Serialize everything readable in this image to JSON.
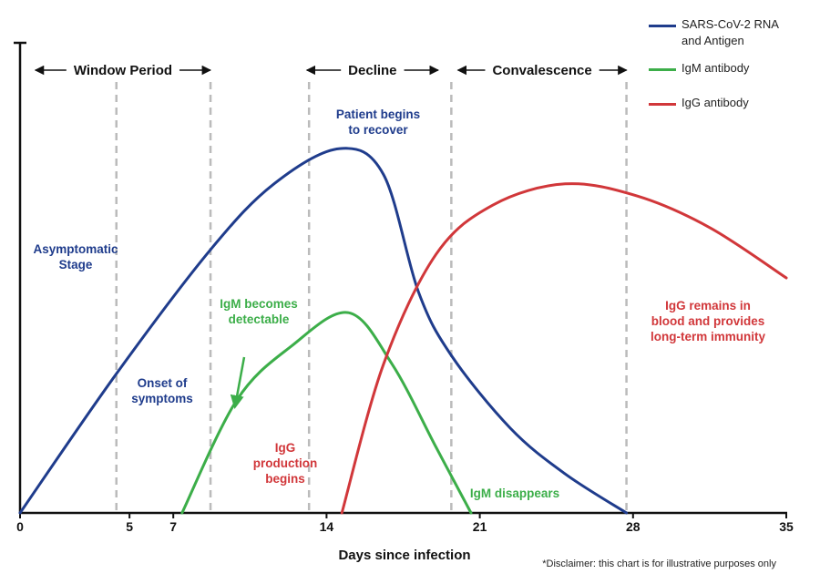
{
  "chart_data": {
    "type": "line",
    "x_label": "Days since infection",
    "footnote": "*Disclaimer: this chart is for illustrative purposes only",
    "xlim": [
      0,
      35
    ],
    "xticks": [
      0,
      5,
      7,
      14,
      21,
      28,
      35
    ],
    "ylim": [
      0,
      100
    ],
    "series": [
      {
        "name": "SARS-CoV-2 RNA and Antigen",
        "color": "#1f3c8c",
        "x": [
          0,
          4.4,
          8.7,
          11.6,
          14.6,
          16.6,
          18.2,
          19.7,
          22.4,
          24.9,
          27.7
        ],
        "values": [
          0,
          29.6,
          56,
          70,
          77.5,
          72,
          47,
          33.5,
          18,
          8.3,
          0
        ]
      },
      {
        "name": "IgM antibody",
        "color": "#3cae49",
        "x": [
          7.4,
          9.9,
          12.4,
          15,
          17,
          19,
          20.6
        ],
        "values": [
          0,
          24,
          35.5,
          42.6,
          31.6,
          14,
          0
        ]
      },
      {
        "name": "IgG antibody",
        "color": "#d1373a",
        "x": [
          14.7,
          16.6,
          19,
          21.6,
          24.9,
          28.2,
          31.5,
          35
        ],
        "values": [
          0,
          31.6,
          55,
          65.5,
          70,
          67.4,
          60.7,
          50
        ]
      }
    ],
    "phase_lines": [
      4.4,
      8.7,
      13.2,
      19.7,
      27.7
    ],
    "phases": [
      {
        "label": "Window Period",
        "start": 0.7,
        "end": 8.7
      },
      {
        "label": "Decline",
        "start": 13.1,
        "end": 19.1
      },
      {
        "label": "Convalescence",
        "start": 20,
        "end": 27.7
      }
    ],
    "annotations": [
      {
        "lines": [
          "Asymptomatic",
          "Stage"
        ],
        "color": "#1f3c8c"
      },
      {
        "lines": [
          "Onset of",
          "symptoms"
        ],
        "color": "#1f3c8c"
      },
      {
        "lines": [
          "IgM becomes",
          "detectable"
        ],
        "color": "#3cae49"
      },
      {
        "lines": [
          "Patient begins",
          "to recover"
        ],
        "color": "#1f3c8c"
      },
      {
        "lines": [
          "IgG",
          "production",
          "begins"
        ],
        "color": "#d1373a"
      },
      {
        "lines": [
          "IgG remains in",
          "blood and provides",
          "long-term immunity"
        ],
        "color": "#d1373a"
      },
      {
        "lines": [
          "IgM disappears"
        ],
        "color": "#3cae49"
      }
    ]
  }
}
